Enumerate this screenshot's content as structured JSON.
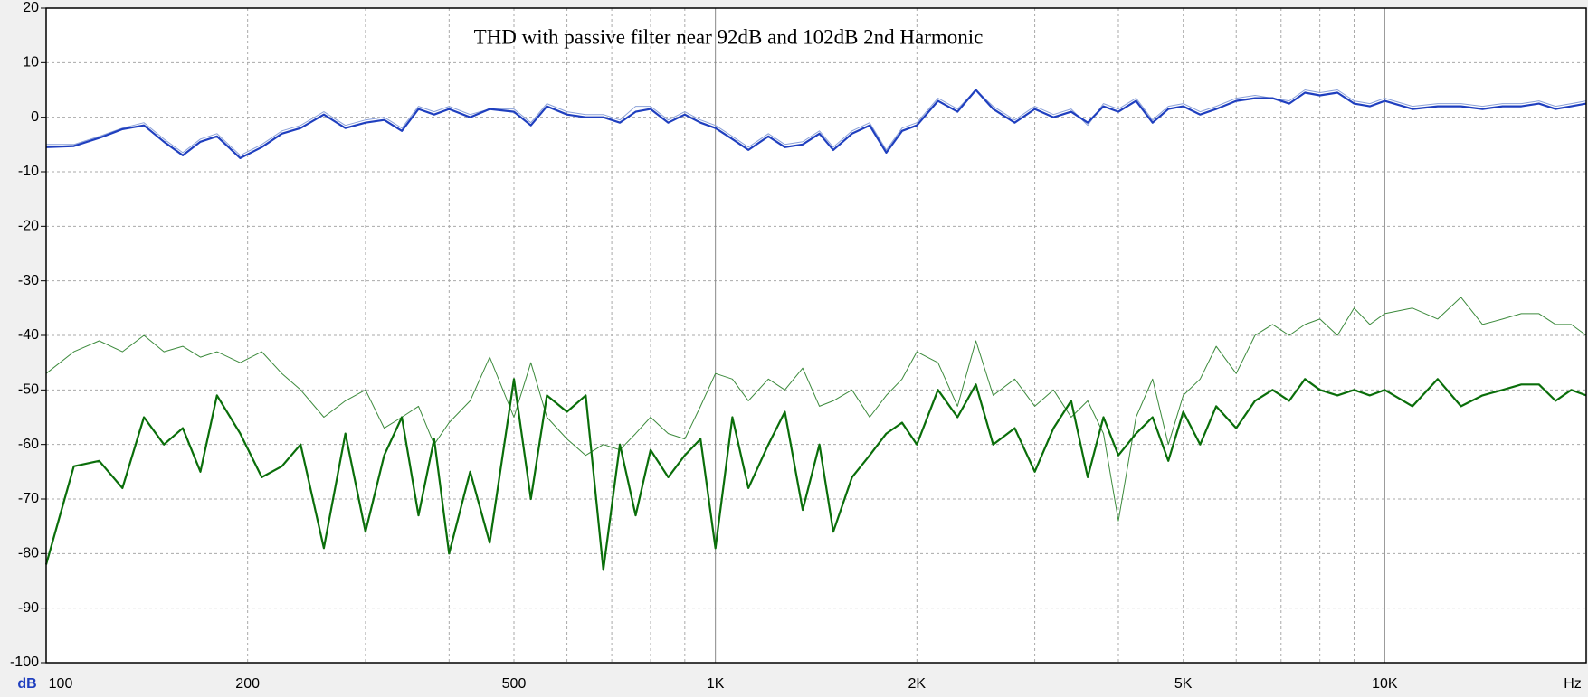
{
  "chart_data": {
    "type": "line",
    "title": "THD with passive filter near 92dB and 102dB 2nd Harmonic",
    "x_unit": "Hz",
    "y_unit": "dB",
    "log_x": true,
    "grid": true,
    "xlim": [
      100,
      20000
    ],
    "ylim": [
      -100,
      20
    ],
    "xticks": [
      100,
      200,
      500,
      {
        "value": 1000,
        "label": "1K"
      },
      {
        "value": 2000,
        "label": "2K"
      },
      {
        "value": 5000,
        "label": "5K"
      },
      {
        "value": 10000,
        "label": "10K"
      }
    ],
    "x_minor_grid": [
      300,
      400,
      600,
      700,
      800,
      900,
      3000,
      4000,
      6000,
      7000,
      8000,
      9000
    ],
    "yticks": [
      -100,
      -90,
      -80,
      -70,
      -60,
      -50,
      -40,
      -30,
      -20,
      -10,
      0,
      10,
      20
    ],
    "x": [
      100,
      110,
      120,
      130,
      140,
      150,
      160,
      170,
      180,
      195,
      210,
      225,
      240,
      260,
      280,
      300,
      320,
      340,
      360,
      380,
      400,
      430,
      460,
      500,
      530,
      560,
      600,
      640,
      680,
      720,
      760,
      800,
      850,
      900,
      950,
      1000,
      1060,
      1120,
      1200,
      1270,
      1350,
      1430,
      1500,
      1600,
      1700,
      1800,
      1900,
      2000,
      2150,
      2300,
      2450,
      2600,
      2800,
      3000,
      3200,
      3400,
      3600,
      3800,
      4000,
      4250,
      4500,
      4750,
      5000,
      5300,
      5600,
      6000,
      6400,
      6800,
      7200,
      7600,
      8000,
      8500,
      9000,
      9500,
      10000,
      11000,
      12000,
      13000,
      14000,
      15000,
      16000,
      17000,
      18000,
      19000,
      20000
    ],
    "series": [
      {
        "color": "#8aa0d8",
        "width": 1,
        "values": [
          -5,
          -5,
          -3.5,
          -2,
          -1,
          -4,
          -6.5,
          -4,
          -3,
          -7,
          -5,
          -2.5,
          -1.5,
          1,
          -1.5,
          -0.5,
          0,
          -2,
          2,
          1,
          2,
          0.5,
          1.5,
          1.5,
          -1,
          2.5,
          1,
          0.5,
          0.5,
          -0.5,
          2,
          2,
          -0.5,
          1,
          -0.5,
          -1.5,
          -3.5,
          -5.5,
          -3,
          -5,
          -4.5,
          -2.5,
          -5.5,
          -2.5,
          -1,
          -6,
          -2,
          -1,
          3.5,
          1.5,
          5,
          2,
          -0.5,
          2,
          0.5,
          1.5,
          -1.5,
          2.5,
          1.5,
          3.5,
          -0.5,
          2,
          2.5,
          1,
          2,
          3.5,
          4,
          3.5,
          3,
          5,
          4.5,
          5,
          3,
          2.5,
          3.5,
          2,
          2.5,
          2.5,
          2,
          2.5,
          2.5,
          3,
          2,
          2.5,
          3
        ]
      },
      {
        "color": "#1f3fbf",
        "width": 2.2,
        "values": [
          -5.5,
          -5.3,
          -3.8,
          -2.2,
          -1.5,
          -4.5,
          -7,
          -4.5,
          -3.5,
          -7.5,
          -5.5,
          -3,
          -2,
          0.5,
          -2,
          -1,
          -0.5,
          -2.5,
          1.5,
          0.5,
          1.5,
          0,
          1.5,
          1,
          -1.5,
          2,
          0.5,
          0,
          0,
          -1,
          1,
          1.5,
          -1,
          0.5,
          -1,
          -2,
          -4,
          -6,
          -3.5,
          -5.5,
          -5,
          -3,
          -6,
          -3,
          -1.5,
          -6.5,
          -2.5,
          -1.5,
          3,
          1,
          5,
          1.5,
          -1,
          1.5,
          0,
          1,
          -1,
          2,
          1,
          3,
          -1,
          1.5,
          2,
          0.5,
          1.5,
          3,
          3.5,
          3.5,
          2.5,
          4.5,
          4,
          4.5,
          2.5,
          2,
          3,
          1.5,
          2,
          2,
          1.5,
          2,
          2,
          2.5,
          1.5,
          2,
          2.5
        ]
      },
      {
        "color": "#3c8a3c",
        "width": 1,
        "values": [
          -47,
          -43,
          -41,
          -43,
          -40,
          -43,
          -42,
          -44,
          -43,
          -45,
          -43,
          -47,
          -50,
          -55,
          -52,
          -50,
          -57,
          -55,
          -53,
          -60,
          -56,
          -52,
          -44,
          -55,
          -45,
          -55,
          -59,
          -62,
          -60,
          -61,
          -58,
          -55,
          -58,
          -59,
          -53,
          -47,
          -48,
          -52,
          -48,
          -50,
          -46,
          -53,
          -52,
          -50,
          -55,
          -51,
          -48,
          -43,
          -45,
          -53,
          -41,
          -51,
          -48,
          -53,
          -50,
          -55,
          -52,
          -58,
          -74,
          -55,
          -48,
          -60,
          -51,
          -48,
          -42,
          -47,
          -40,
          -38,
          -40,
          -38,
          -37,
          -40,
          -35,
          -38,
          -36,
          -35,
          -37,
          -33,
          -38,
          -37,
          -36,
          -36,
          -38,
          -38,
          -40
        ]
      },
      {
        "color": "#0a6e0a",
        "width": 2.2,
        "values": [
          -82,
          -64,
          -63,
          -68,
          -55,
          -60,
          -57,
          -65,
          -51,
          -58,
          -66,
          -64,
          -60,
          -79,
          -58,
          -76,
          -62,
          -55,
          -73,
          -59,
          -80,
          -65,
          -78,
          -48,
          -70,
          -51,
          -54,
          -51,
          -83,
          -60,
          -73,
          -61,
          -66,
          -62,
          -59,
          -79,
          -55,
          -68,
          -60,
          -54,
          -72,
          -60,
          -76,
          -66,
          -62,
          -58,
          -56,
          -60,
          -50,
          -55,
          -49,
          -60,
          -57,
          -65,
          -57,
          -52,
          -66,
          -55,
          -62,
          -58,
          -55,
          -63,
          -54,
          -60,
          -53,
          -57,
          -52,
          -50,
          -52,
          -48,
          -50,
          -51,
          -50,
          -51,
          -50,
          -53,
          -48,
          -53,
          -51,
          -50,
          -49,
          -49,
          -52,
          -50,
          -51
        ]
      }
    ]
  }
}
